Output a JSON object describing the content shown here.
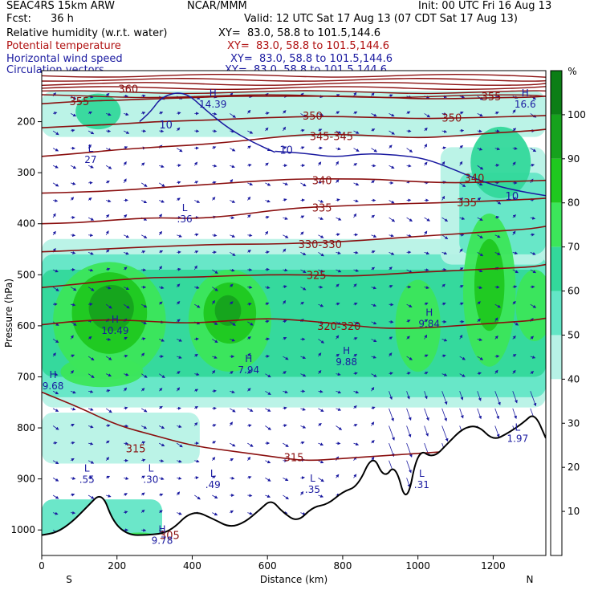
{
  "header": {
    "model": "SEAC4RS 15km ARW",
    "org": "NCAR/MMM",
    "init": "Init: 00 UTC Fri 16 Aug 13",
    "fcst_label": "Fcst:",
    "fcst_value": "36 h",
    "valid": "Valid: 12 UTC Sat 17 Aug 13 (07 CDT Sat 17 Aug 13)"
  },
  "fields": [
    {
      "label": "Relative humidity (w.r.t. water)",
      "xy": "XY=  83.0, 58.8 to 101.5,144.6",
      "color": "#000000"
    },
    {
      "label": "Potential temperature",
      "xy": "XY=  83.0, 58.8 to 101.5,144.6",
      "color": "#b01010"
    },
    {
      "label": "Horizontal wind speed",
      "xy": "XY=  83.0, 58.8 to 101.5,144.6",
      "color": "#1a1aa0"
    },
    {
      "label": "Circulation vectors",
      "xy": "XY=  83.0, 58.8 to 101.5,144.6",
      "color": "#1a1aa0"
    }
  ],
  "colorbar": {
    "unit": "%",
    "ticks": [
      "10",
      "20",
      "30",
      "40",
      "50",
      "60",
      "70",
      "80",
      "90",
      "100"
    ],
    "colors": [
      "#ffffff",
      "#ffffff",
      "#ffffff",
      "#b7f2e6",
      "#63e6c6",
      "#33d89b",
      "#3ce65a",
      "#1fc81f",
      "#16a21d",
      "#0c7e16"
    ]
  },
  "chart_data": {
    "type": "heatmap",
    "xlabel": "Distance (km)",
    "ylabel": "Pressure (hPa)",
    "x_ticks": [
      0,
      200,
      400,
      600,
      800,
      1000,
      1200
    ],
    "y_ticks": [
      200,
      300,
      400,
      500,
      600,
      700,
      800,
      900,
      1000
    ],
    "xlim": [
      0,
      1340
    ],
    "ylim": [
      1050,
      100
    ],
    "endpoints": {
      "left": "S",
      "right": "N"
    },
    "theta_contours": [
      {
        "value": 315,
        "p": [
          730,
          760,
          795,
          815,
          835,
          845,
          855,
          865,
          860,
          855,
          850,
          845,
          840,
          830,
          830
        ]
      },
      {
        "value": 320,
        "p": [
          598,
          590,
          588,
          592,
          595,
          590,
          585,
          590,
          597,
          605,
          605,
          600,
          595,
          590,
          585
        ]
      },
      {
        "value": 325,
        "p": [
          525,
          518,
          510,
          505,
          505,
          502,
          500,
          500,
          503,
          500,
          495,
          492,
          488,
          485,
          480
        ]
      },
      {
        "value": 330,
        "p": [
          455,
          452,
          448,
          445,
          442,
          440,
          440,
          438,
          435,
          430,
          425,
          420,
          415,
          410,
          405
        ]
      },
      {
        "value": 335,
        "p": [
          400,
          398,
          392,
          388,
          390,
          385,
          375,
          368,
          365,
          362,
          360,
          358,
          355,
          352,
          350
        ]
      },
      {
        "value": 340,
        "p": [
          340,
          338,
          335,
          330,
          325,
          320,
          315,
          312,
          312,
          313,
          318,
          320,
          318,
          316,
          315
        ]
      },
      {
        "value": 345,
        "p": [
          268,
          262,
          255,
          250,
          246,
          240,
          232,
          225,
          225,
          228,
          232,
          228,
          222,
          218,
          215
        ]
      },
      {
        "value": 350,
        "p": [
          212,
          208,
          205,
          200,
          198,
          195,
          192,
          190,
          190,
          192,
          194,
          193,
          191,
          189,
          188
        ]
      },
      {
        "value": 355,
        "p": [
          165,
          160,
          158,
          155,
          153,
          150,
          150,
          150,
          150,
          152,
          155,
          155,
          153,
          152,
          150
        ]
      }
    ],
    "theta_x": [
      0,
      100,
      200,
      300,
      400,
      500,
      600,
      700,
      800,
      900,
      1000,
      1100,
      1200,
      1300,
      1340
    ],
    "theta_labels": [
      {
        "text": "355",
        "x": 100,
        "p": 160
      },
      {
        "text": "360",
        "x": 230,
        "p": 135
      },
      {
        "text": "350",
        "x": 720,
        "p": 188
      },
      {
        "text": "350",
        "x": 1090,
        "p": 192
      },
      {
        "text": "355",
        "x": 1195,
        "p": 150
      },
      {
        "text": "345-345",
        "x": 770,
        "p": 228
      },
      {
        "text": "340",
        "x": 745,
        "p": 315
      },
      {
        "text": "340",
        "x": 1150,
        "p": 310
      },
      {
        "text": "335",
        "x": 745,
        "p": 368
      },
      {
        "text": "335",
        "x": 1130,
        "p": 358
      },
      {
        "text": "330-330",
        "x": 740,
        "p": 440
      },
      {
        "text": "325",
        "x": 730,
        "p": 500
      },
      {
        "text": "320-320",
        "x": 790,
        "p": 600
      },
      {
        "text": "315",
        "x": 250,
        "p": 840
      },
      {
        "text": "315",
        "x": 670,
        "p": 857
      },
      {
        "text": "305",
        "x": 340,
        "p": 1010
      }
    ],
    "wind_contours": [
      {
        "value": 10,
        "x": [
          260,
          290,
          320,
          380,
          440,
          500,
          560,
          620
        ],
        "p": [
          200,
          180,
          150,
          140,
          180,
          215,
          240,
          260
        ]
      },
      {
        "value": 10,
        "x": [
          620,
          700,
          780,
          860,
          940,
          1020,
          1100,
          1180,
          1260,
          1340
        ],
        "p": [
          258,
          262,
          270,
          262,
          265,
          272,
          295,
          320,
          335,
          345
        ]
      }
    ],
    "wind_labels": [
      {
        "text": "10",
        "x": 330,
        "p": 205
      },
      {
        "text": "10",
        "x": 650,
        "p": 255
      },
      {
        "text": "10",
        "x": 1250,
        "p": 345
      }
    ],
    "extrema": [
      {
        "letter": "H",
        "value": "14.39",
        "x": 455,
        "p": 160
      },
      {
        "letter": "H",
        "value": "16.6",
        "x": 1285,
        "p": 160
      },
      {
        "letter": "L",
        "value": "27",
        "x": 130,
        "p": 268
      },
      {
        "letter": "L",
        "value": ".36",
        "x": 380,
        "p": 385
      },
      {
        "letter": "H",
        "value": "10.49",
        "x": 195,
        "p": 603
      },
      {
        "letter": "H",
        "value": "9.84",
        "x": 1030,
        "p": 590
      },
      {
        "letter": "H",
        "value": "9.88",
        "x": 810,
        "p": 665
      },
      {
        "letter": "H",
        "value": "7.94",
        "x": 550,
        "p": 680
      },
      {
        "letter": "H",
        "value": "9.68",
        "x": 30,
        "p": 712
      },
      {
        "letter": "L",
        "value": "1.97",
        "x": 1265,
        "p": 815
      },
      {
        "letter": "L",
        "value": ".55",
        "x": 120,
        "p": 895
      },
      {
        "letter": "L",
        "value": ".30",
        "x": 290,
        "p": 895
      },
      {
        "letter": "L",
        "value": ".49",
        "x": 455,
        "p": 905
      },
      {
        "letter": "L",
        "value": ".31",
        "x": 1010,
        "p": 905
      },
      {
        "letter": "L",
        "value": ".35",
        "x": 720,
        "p": 915
      },
      {
        "letter": "H",
        "value": "9.78",
        "x": 320,
        "p": 1015
      }
    ],
    "terrain": {
      "x": [
        0,
        40,
        80,
        120,
        160,
        190,
        230,
        280,
        340,
        400,
        460,
        500,
        540,
        580,
        610,
        640,
        680,
        720,
        760,
        800,
        840,
        880,
        910,
        940,
        970,
        1000,
        1040,
        1080,
        1120,
        1160,
        1200,
        1240,
        1280,
        1310,
        1340
      ],
      "p": [
        1010,
        1005,
        985,
        955,
        925,
        985,
        1010,
        1010,
        1005,
        960,
        980,
        995,
        985,
        960,
        940,
        965,
        985,
        955,
        950,
        925,
        915,
        850,
        900,
        870,
        955,
        840,
        860,
        830,
        800,
        795,
        825,
        810,
        790,
        770,
        820
      ]
    }
  }
}
